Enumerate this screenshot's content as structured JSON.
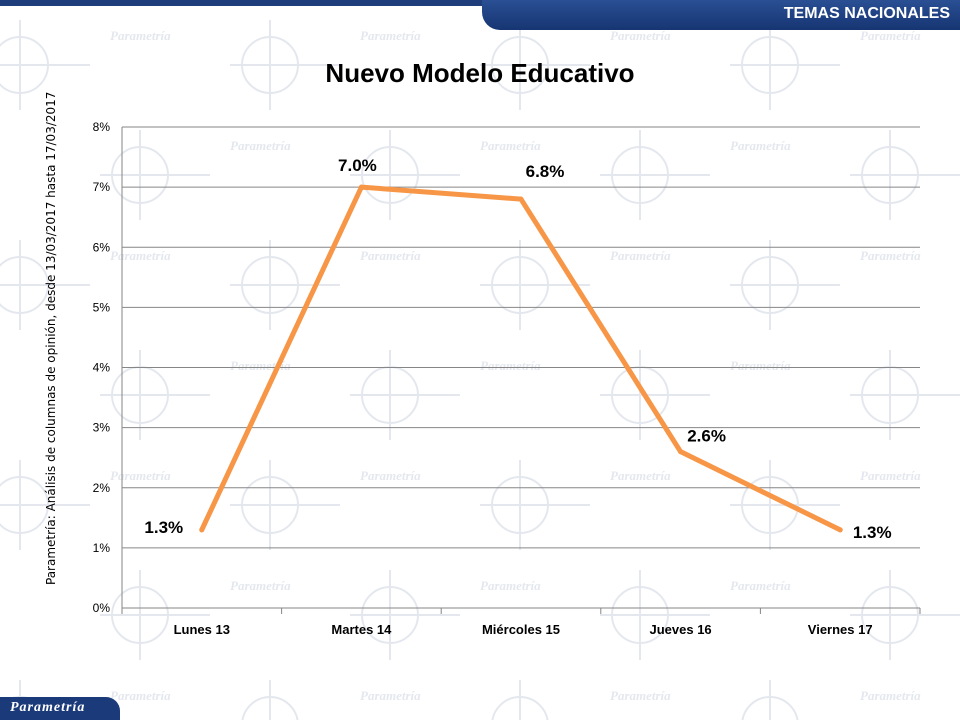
{
  "header": {
    "label": "TEMAS NACIONALES"
  },
  "watermark": {
    "text": "Parametría"
  },
  "logo": {
    "text": "Parametría"
  },
  "side_note": "Parametría: Análisis de columnas de opinión, desde 13/03/2017 hasta 17/03/2017",
  "chart_data": {
    "type": "line",
    "title": "Nuevo Modelo Educativo",
    "xlabel": "",
    "ylabel": "",
    "categories": [
      "Lunes 13",
      "Martes 14",
      "Miércoles 15",
      "Jueves 16",
      "Viernes 17"
    ],
    "series": [
      {
        "values": [
          1.3,
          7.0,
          6.8,
          2.6,
          1.3
        ],
        "labels": [
          "1.3%",
          "7.0%",
          "6.8%",
          "2.6%",
          "1.3%"
        ]
      }
    ],
    "ylim": [
      0,
      8
    ],
    "yticks": [
      0,
      1,
      2,
      3,
      4,
      5,
      6,
      7,
      8
    ],
    "ytick_labels": [
      "0%",
      "1%",
      "2%",
      "3%",
      "4%",
      "5%",
      "6%",
      "7%",
      "8%"
    ],
    "grid": true,
    "legend": "none",
    "colors": {
      "line": "#f79646",
      "grid": "#868686",
      "header": "#1f3d7a"
    }
  }
}
